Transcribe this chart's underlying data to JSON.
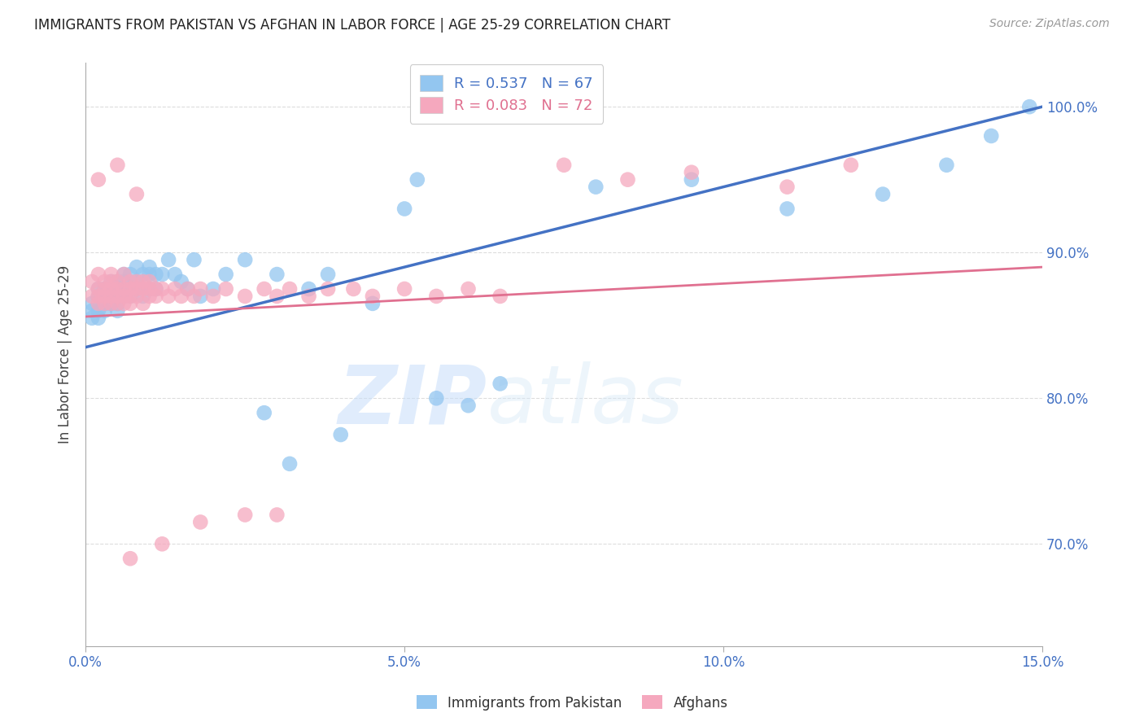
{
  "title": "IMMIGRANTS FROM PAKISTAN VS AFGHAN IN LABOR FORCE | AGE 25-29 CORRELATION CHART",
  "source": "Source: ZipAtlas.com",
  "ylabel": "In Labor Force | Age 25-29",
  "xlim": [
    0.0,
    0.15
  ],
  "ylim": [
    0.63,
    1.03
  ],
  "yticks": [
    0.7,
    0.8,
    0.9,
    1.0
  ],
  "ytick_labels": [
    "70.0%",
    "80.0%",
    "90.0%",
    "100.0%"
  ],
  "xticks": [
    0.0,
    0.05,
    0.1,
    0.15
  ],
  "xtick_labels": [
    "0.0%",
    "5.0%",
    "10.0%",
    "15.0%"
  ],
  "pakistan_color": "#93C6F0",
  "afghan_color": "#F5A8BE",
  "pakistan_line_color": "#4472C4",
  "afghan_line_color": "#E07090",
  "pakistan_R": 0.537,
  "pakistan_N": 67,
  "afghan_R": 0.083,
  "afghan_N": 72,
  "legend_label_pak": "Immigrants from Pakistan",
  "legend_label_afg": "Afghans",
  "watermark_zip": "ZIP",
  "watermark_atlas": "atlas",
  "title_color": "#222222",
  "axis_label_color": "#444444",
  "tick_color": "#4472C4",
  "grid_color": "#DDDDDD",
  "pakistan_x": [
    0.001,
    0.001,
    0.001,
    0.002,
    0.002,
    0.002,
    0.002,
    0.003,
    0.003,
    0.003,
    0.003,
    0.003,
    0.004,
    0.004,
    0.004,
    0.004,
    0.005,
    0.005,
    0.005,
    0.005,
    0.005,
    0.006,
    0.006,
    0.006,
    0.006,
    0.007,
    0.007,
    0.007,
    0.008,
    0.008,
    0.008,
    0.009,
    0.009,
    0.01,
    0.01,
    0.01,
    0.011,
    0.011,
    0.012,
    0.013,
    0.014,
    0.015,
    0.016,
    0.017,
    0.018,
    0.02,
    0.022,
    0.025,
    0.028,
    0.03,
    0.032,
    0.035,
    0.038,
    0.04,
    0.045,
    0.05,
    0.052,
    0.055,
    0.06,
    0.065,
    0.08,
    0.095,
    0.11,
    0.125,
    0.135,
    0.142,
    0.148
  ],
  "pakistan_y": [
    0.86,
    0.855,
    0.865,
    0.875,
    0.87,
    0.86,
    0.855,
    0.875,
    0.87,
    0.865,
    0.875,
    0.86,
    0.88,
    0.875,
    0.87,
    0.865,
    0.88,
    0.875,
    0.87,
    0.865,
    0.86,
    0.885,
    0.88,
    0.875,
    0.87,
    0.885,
    0.875,
    0.87,
    0.89,
    0.88,
    0.875,
    0.885,
    0.87,
    0.89,
    0.885,
    0.875,
    0.885,
    0.875,
    0.885,
    0.895,
    0.885,
    0.88,
    0.875,
    0.895,
    0.87,
    0.875,
    0.885,
    0.895,
    0.79,
    0.885,
    0.755,
    0.875,
    0.885,
    0.775,
    0.865,
    0.93,
    0.95,
    0.8,
    0.795,
    0.81,
    0.945,
    0.95,
    0.93,
    0.94,
    0.96,
    0.98,
    1.0
  ],
  "afghan_x": [
    0.001,
    0.001,
    0.002,
    0.002,
    0.002,
    0.002,
    0.003,
    0.003,
    0.003,
    0.003,
    0.004,
    0.004,
    0.004,
    0.004,
    0.004,
    0.005,
    0.005,
    0.005,
    0.005,
    0.006,
    0.006,
    0.006,
    0.006,
    0.007,
    0.007,
    0.007,
    0.007,
    0.008,
    0.008,
    0.008,
    0.009,
    0.009,
    0.009,
    0.01,
    0.01,
    0.01,
    0.011,
    0.011,
    0.012,
    0.013,
    0.014,
    0.015,
    0.016,
    0.017,
    0.018,
    0.02,
    0.022,
    0.025,
    0.028,
    0.03,
    0.032,
    0.035,
    0.038,
    0.042,
    0.045,
    0.05,
    0.055,
    0.06,
    0.065,
    0.075,
    0.085,
    0.095,
    0.11,
    0.12,
    0.025,
    0.03,
    0.012,
    0.018,
    0.007,
    0.002,
    0.005,
    0.008
  ],
  "afghan_y": [
    0.88,
    0.87,
    0.885,
    0.87,
    0.875,
    0.865,
    0.875,
    0.87,
    0.88,
    0.865,
    0.885,
    0.88,
    0.875,
    0.87,
    0.865,
    0.88,
    0.875,
    0.87,
    0.865,
    0.885,
    0.875,
    0.87,
    0.865,
    0.88,
    0.875,
    0.87,
    0.865,
    0.88,
    0.875,
    0.87,
    0.88,
    0.875,
    0.865,
    0.88,
    0.875,
    0.87,
    0.875,
    0.87,
    0.875,
    0.87,
    0.875,
    0.87,
    0.875,
    0.87,
    0.875,
    0.87,
    0.875,
    0.87,
    0.875,
    0.87,
    0.875,
    0.87,
    0.875,
    0.875,
    0.87,
    0.875,
    0.87,
    0.875,
    0.87,
    0.96,
    0.95,
    0.955,
    0.945,
    0.96,
    0.72,
    0.72,
    0.7,
    0.715,
    0.69,
    0.95,
    0.96,
    0.94
  ],
  "pak_line_x0": 0.0,
  "pak_line_x1": 0.15,
  "pak_line_y0": 0.835,
  "pak_line_y1": 1.0,
  "afg_line_x0": 0.0,
  "afg_line_x1": 0.15,
  "afg_line_y0": 0.856,
  "afg_line_y1": 0.89
}
